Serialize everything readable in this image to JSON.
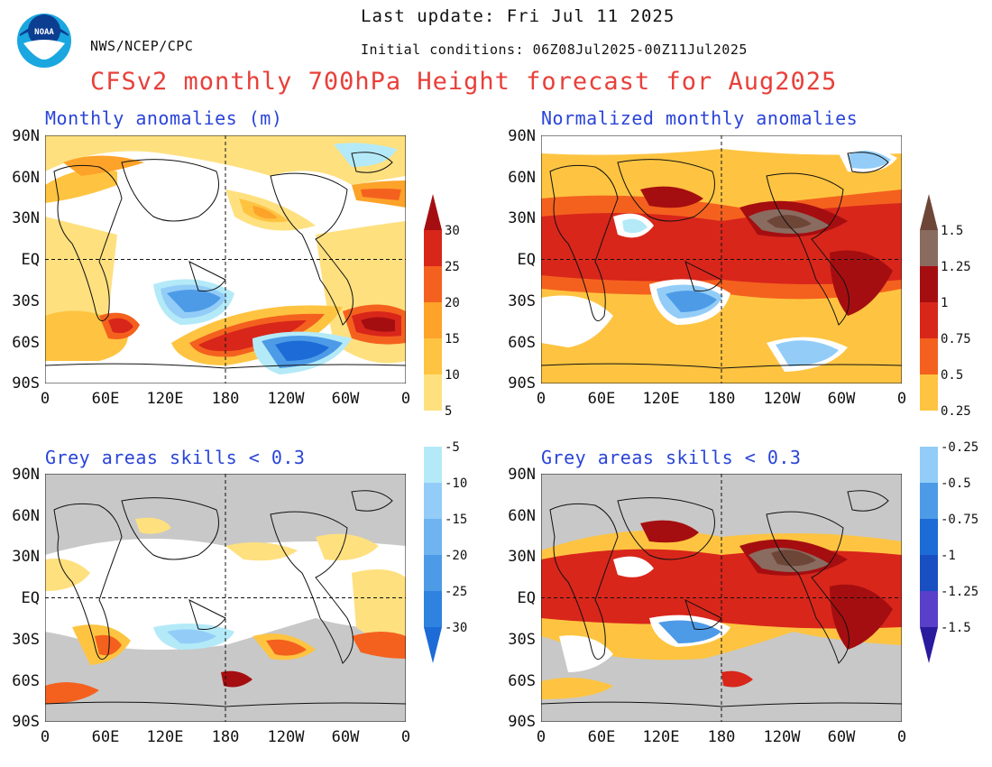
{
  "header": {
    "agency": "NWS/NCEP/CPC",
    "logo_text": "NOAA",
    "last_update": "Last update: Fri Jul 11 2025",
    "initial_conditions": "Initial conditions: 06Z08Jul2025-00Z11Jul2025",
    "title": "CFSv2 monthly 700hPa Height forecast for Aug2025"
  },
  "panels": {
    "top_left_title": "Monthly anomalies (m)",
    "top_right_title": "Normalized monthly anomalies",
    "bottom_left_title": "Grey areas skills < 0.3",
    "bottom_right_title": "Grey areas skills < 0.3"
  },
  "axes": {
    "lat_labels": [
      "90N",
      "60N",
      "30N",
      "EQ",
      "30S",
      "60S",
      "90S"
    ],
    "lon_labels": [
      "0",
      "60E",
      "120E",
      "180",
      "120W",
      "60W",
      "0"
    ]
  },
  "colorbars": {
    "meters": {
      "positive": [
        "30",
        "25",
        "20",
        "15",
        "10",
        "5"
      ],
      "negative": [
        "-5",
        "-10",
        "-15",
        "-20",
        "-25",
        "-30"
      ]
    },
    "normalized": {
      "positive": [
        "1.5",
        "1.25",
        "1",
        "0.75",
        "0.5",
        "0.25"
      ],
      "negative": [
        "-0.25",
        "-0.5",
        "-0.75",
        "-1",
        "-1.25",
        "-1.5"
      ]
    }
  },
  "colors": {
    "title_red": "#e8403a",
    "panel_title_blue": "#2a44d8",
    "skill_grey": "#c8c8c8"
  }
}
